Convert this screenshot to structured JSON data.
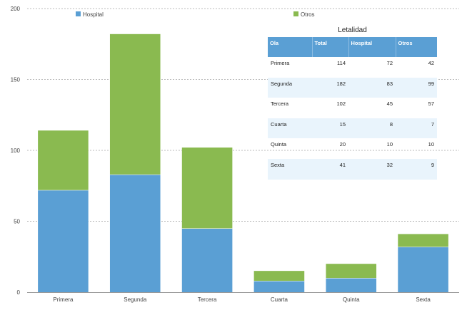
{
  "chart_data": {
    "type": "bar",
    "stacked": true,
    "categories": [
      "Primera",
      "Segunda",
      "Tercera",
      "Cuarta",
      "Quinta",
      "Sexta"
    ],
    "series": [
      {
        "name": "Hospital",
        "color": "#5a9fd4",
        "values": [
          72,
          83,
          45,
          8,
          10,
          32
        ]
      },
      {
        "name": "Otros",
        "color": "#8aba50",
        "values": [
          42,
          99,
          57,
          7,
          10,
          9
        ]
      }
    ],
    "ylim": [
      0,
      200
    ],
    "yticks": [
      0,
      50,
      100,
      150,
      200
    ],
    "grid": true,
    "legend": "top"
  },
  "table": {
    "title": "Letalidad",
    "columns": [
      "Ola",
      "Total",
      "Hospital",
      "Otros"
    ],
    "rows": [
      [
        "Primera",
        "114",
        "72",
        "42"
      ],
      [
        "Segunda",
        "182",
        "83",
        "99"
      ],
      [
        "Tercera",
        "102",
        "45",
        "57"
      ],
      [
        "Cuarta",
        "15",
        "8",
        "7"
      ],
      [
        "Quinta",
        "20",
        "10",
        "10"
      ],
      [
        "Sexta",
        "41",
        "32",
        "9"
      ]
    ],
    "header_color": "#5a9fd4",
    "stripe_color": "#e9f4fc"
  }
}
